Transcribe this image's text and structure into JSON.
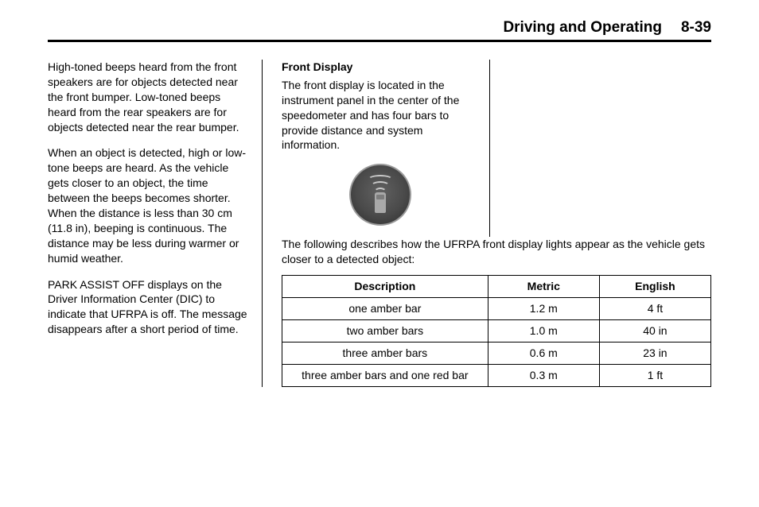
{
  "header": {
    "section_title": "Driving and Operating",
    "page_number": "8-39"
  },
  "left_column": {
    "para1": "High-toned beeps heard from the front speakers are for objects detected near the front bumper. Low-toned beeps heard from the rear speakers are for objects detected near the rear bumper.",
    "para2": "When an object is detected, high or low-tone beeps are heard. As the vehicle gets closer to an object, the time between the beeps becomes shorter. When the distance is less than 30 cm (11.8 in), beeping is continuous. The distance may be less during warmer or humid weather.",
    "para3": "PARK ASSIST OFF displays on the Driver Information Center (DIC) to indicate that UFRPA is off. The message disappears after a short period of time."
  },
  "mid_column": {
    "subhead": "Front Display",
    "para1": "The front display is located in the instrument panel in the center of the speedometer and has four bars to provide distance and system information.",
    "icon_name": "parking-sensor-icon",
    "icon_colors": {
      "ring": "#9a9a9a",
      "bg_inner": "#616161",
      "bg_outer": "#2b2b2b",
      "wave": "#c8c8c8",
      "car": "#a9a9a9"
    }
  },
  "table_section": {
    "intro": "The following describes how the UFRPA front display lights appear as the vehicle gets closer to a detected object:",
    "columns": [
      "Description",
      "Metric",
      "English"
    ],
    "rows": [
      [
        "one amber bar",
        "1.2 m",
        "4 ft"
      ],
      [
        "two amber bars",
        "1.0 m",
        "40 in"
      ],
      [
        "three amber bars",
        "0.6 m",
        "23 in"
      ],
      [
        "three amber bars and one red bar",
        "0.3 m",
        "1 ft"
      ]
    ]
  }
}
